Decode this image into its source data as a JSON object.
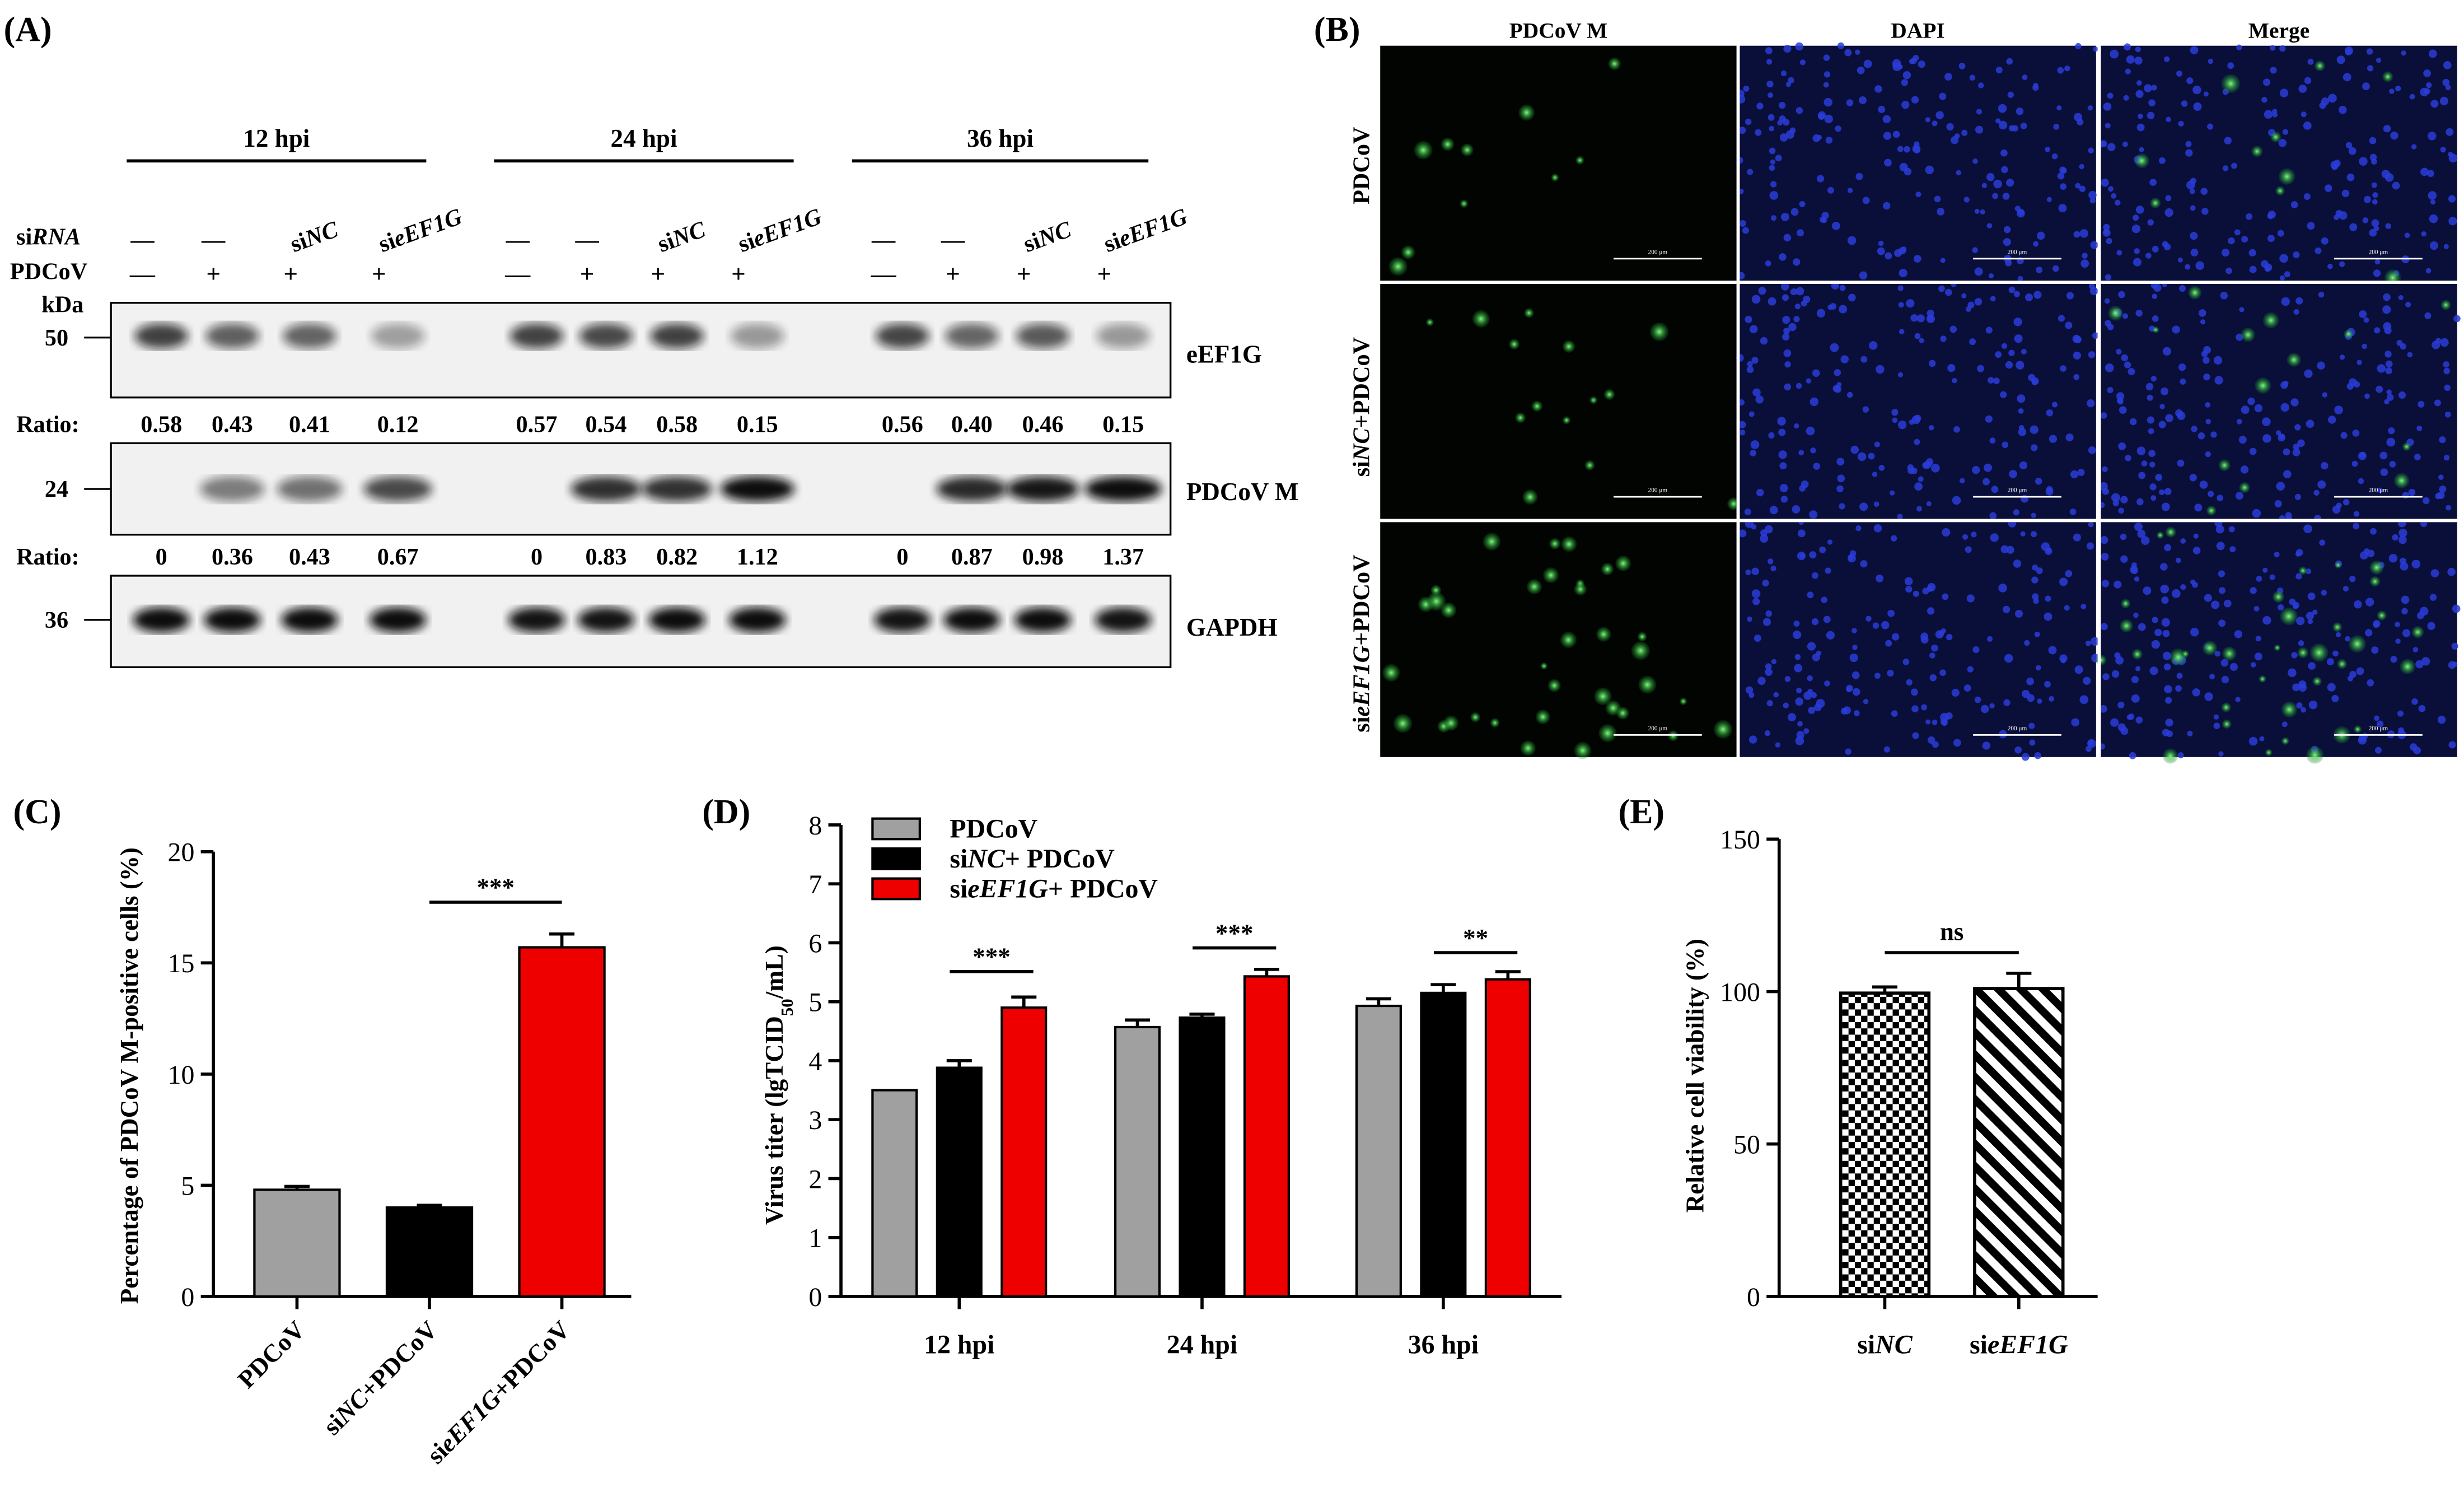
{
  "panels": {
    "a": {
      "label": "(A)",
      "timepoints": [
        "12 hpi",
        "24 hpi",
        "36 hpi"
      ],
      "row_sirna_prefix": "si",
      "row_sirna_italic": "RNA",
      "row_pdcov": "PDCoV",
      "kda": "kDa",
      "lane_sirna": [
        {
          "text": "—"
        },
        {
          "text": "—"
        },
        {
          "pre": "si",
          "ital": "NC"
        },
        {
          "pre": "si",
          "ital": "EF1G",
          "pre_ital": "e"
        }
      ],
      "lane_pdcov": [
        "—",
        "+",
        "+",
        "+"
      ],
      "mw": [
        "50",
        "24",
        "36"
      ],
      "blots": [
        "eEF1G",
        "PDCoV M",
        "GAPDH"
      ],
      "ratio_label": "Ratio:",
      "ratios_eef1g": [
        [
          "0.58",
          "0.43",
          "0.41",
          "0.12"
        ],
        [
          "0.57",
          "0.54",
          "0.58",
          "0.15"
        ],
        [
          "0.56",
          "0.40",
          "0.46",
          "0.15"
        ]
      ],
      "ratios_pdcov_m": [
        [
          "0",
          "0.36",
          "0.43",
          "0.67"
        ],
        [
          "0",
          "0.83",
          "0.82",
          "1.12"
        ],
        [
          "0",
          "0.87",
          "0.98",
          "1.37"
        ]
      ],
      "band_intensity": {
        "eef1g": [
          [
            0.58,
            0.43,
            0.41,
            0.12
          ],
          [
            0.57,
            0.54,
            0.58,
            0.15
          ],
          [
            0.56,
            0.4,
            0.46,
            0.15
          ]
        ],
        "pdcov_m": [
          [
            0,
            0.36,
            0.43,
            0.67
          ],
          [
            0,
            0.83,
            0.82,
            1.12
          ],
          [
            0,
            0.87,
            0.98,
            1.37
          ]
        ],
        "gapdh": [
          [
            1,
            1,
            1,
            0.9
          ],
          [
            0.8,
            0.8,
            0.85,
            0.85
          ],
          [
            0.8,
            1,
            0.9,
            0.8
          ]
        ]
      }
    },
    "b": {
      "label": "(B)",
      "columns": [
        "PDCoV M",
        "DAPI",
        "Merge"
      ],
      "rows": [
        {
          "plain": "PDCoV"
        },
        {
          "pre": "si",
          "ital": "NC",
          "post": "+PDCoV"
        },
        {
          "pre": "si",
          "ital": "eEF1G",
          "post": "+PDCoV"
        }
      ],
      "scale_bar": "200 μm",
      "green_cell_density": [
        0.25,
        0.35,
        0.9
      ]
    },
    "c": {
      "label": "(C)"
    },
    "d": {
      "label": "(D)",
      "ylabel_pre": "Virus titer (lgTCID",
      "ylabel_sub": "50",
      "ylabel_post": "/mL)",
      "legend": [
        {
          "pre": "PDCoV",
          "ital": "",
          "post": ""
        },
        {
          "pre": "si",
          "ital": "NC",
          "post": "+ PDCoV"
        },
        {
          "pre": "si",
          "ital": "eEF1G",
          "post": "+ PDCoV"
        }
      ]
    },
    "e": {
      "label": "(E)"
    }
  },
  "colors": {
    "gray": "#a0a0a0",
    "black": "#000000",
    "red": "#ee0000",
    "dapi": "#2a3cd8",
    "gfp": "#2fe04a"
  },
  "chart_data": [
    {
      "type": "bar",
      "title": "",
      "categories": [
        "PDCoV",
        "siNC+PDCoV",
        "sieEF1G+PDCoV"
      ],
      "category_parts": [
        {
          "pre": "PDCoV",
          "ital": "",
          "post": ""
        },
        {
          "pre": "si",
          "ital": "NC",
          "post": "+PDCoV"
        },
        {
          "pre": "si",
          "ital": "eEF1G",
          "post": "+PDCoV"
        }
      ],
      "values": [
        4.8,
        4.0,
        15.7
      ],
      "errors": [
        0.15,
        0.1,
        0.6
      ],
      "colors": [
        "#a0a0a0",
        "#000000",
        "#ee0000"
      ],
      "ylabel": "Percentage of PDCoV M-positive cells (%)",
      "ylim": [
        0,
        20
      ],
      "yticks": [
        0,
        5,
        10,
        15,
        20
      ],
      "significance": [
        {
          "from": 1,
          "to": 2,
          "label": "***"
        }
      ]
    },
    {
      "type": "bar",
      "title": "",
      "categories": [
        "12 hpi",
        "24 hpi",
        "36 hpi"
      ],
      "series": [
        {
          "name": "PDCoV",
          "values": [
            3.5,
            4.57,
            4.93
          ],
          "errors": [
            0,
            0.12,
            0.12
          ],
          "color": "#a0a0a0"
        },
        {
          "name": "siNC + PDCoV",
          "values": [
            3.88,
            4.73,
            5.15
          ],
          "errors": [
            0.12,
            0.06,
            0.14
          ],
          "color": "#000000"
        },
        {
          "name": "sieEF1G + PDCoV",
          "values": [
            4.9,
            5.43,
            5.38
          ],
          "errors": [
            0.18,
            0.12,
            0.13
          ],
          "color": "#ee0000"
        }
      ],
      "ylim": [
        0,
        8
      ],
      "yticks": [
        0,
        1,
        2,
        3,
        4,
        5,
        6,
        7,
        8
      ],
      "significance": [
        {
          "category": 0,
          "label": "***"
        },
        {
          "category": 1,
          "label": "***"
        },
        {
          "category": 2,
          "label": "**"
        }
      ]
    },
    {
      "type": "bar",
      "title": "",
      "categories": [
        "siNC",
        "sieEF1G"
      ],
      "category_parts": [
        {
          "pre": "si",
          "ital": "NC",
          "post": ""
        },
        {
          "pre": "si",
          "ital": "eEF1G",
          "post": ""
        }
      ],
      "values": [
        99.5,
        101
      ],
      "errors": [
        2,
        5
      ],
      "patterns": [
        "checker",
        "diagonal"
      ],
      "ylabel": "Relative cell viability (%)",
      "ylim": [
        0,
        150
      ],
      "yticks": [
        0,
        50,
        100,
        150
      ],
      "significance": [
        {
          "from": 0,
          "to": 1,
          "label": "ns"
        }
      ]
    }
  ]
}
